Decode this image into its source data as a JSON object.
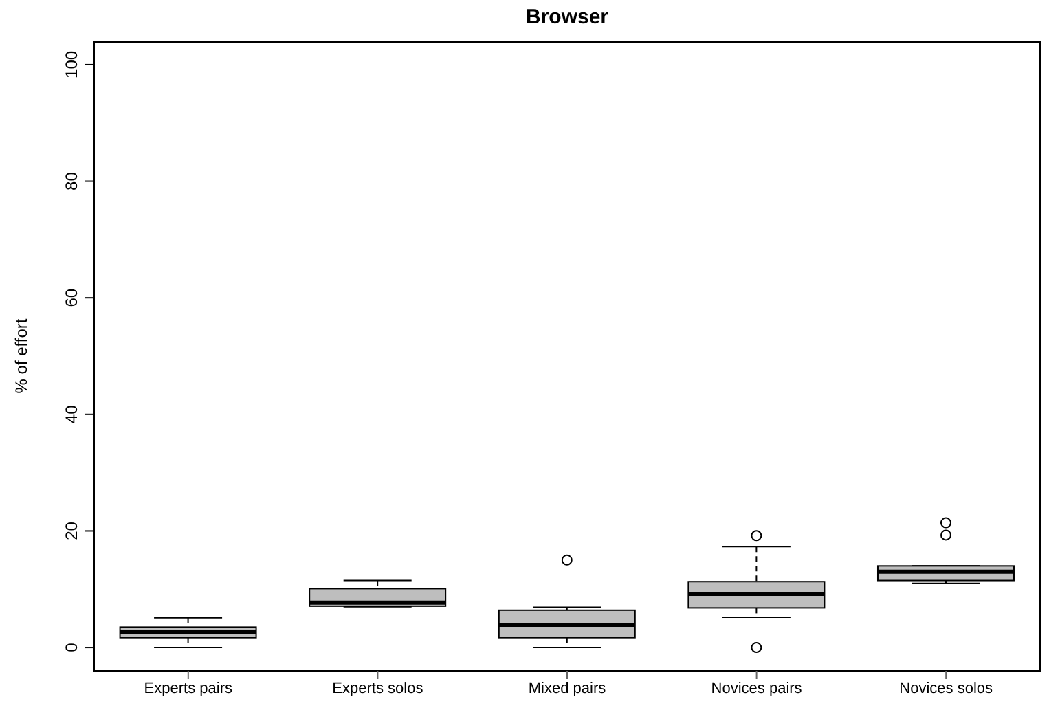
{
  "chart_data": {
    "type": "box",
    "title": "Browser",
    "ylabel": "% of effort",
    "categories": [
      "Experts pairs",
      "Experts solos",
      "Mixed pairs",
      "Novices pairs",
      "Novices solos"
    ],
    "color": "#bebebe",
    "line_style": "dashed",
    "marker": "circle",
    "ylim": [
      -4,
      104
    ],
    "yticks": [
      0,
      20,
      40,
      60,
      80,
      100
    ],
    "boxes": [
      {
        "low": 0,
        "q1": 1.7,
        "median": 2.7,
        "q3": 3.5,
        "high": 5.1
      },
      {
        "low": 7.0,
        "q1": 7.1,
        "median": 7.7,
        "q3": 10.1,
        "high": 11.5
      },
      {
        "low": 0,
        "q1": 1.7,
        "median": 3.9,
        "q3": 6.4,
        "high": 6.9,
        "outliers": [
          15
        ]
      },
      {
        "low": 5.2,
        "q1": 6.8,
        "median": 9.2,
        "q3": 11.3,
        "high": 17.3,
        "outliers": [
          19.2,
          0
        ]
      },
      {
        "low": 11.0,
        "q1": 11.5,
        "median": 13.0,
        "q3": 14.0,
        "high": 14.0,
        "outliers": [
          21.4,
          19.3
        ]
      }
    ]
  }
}
